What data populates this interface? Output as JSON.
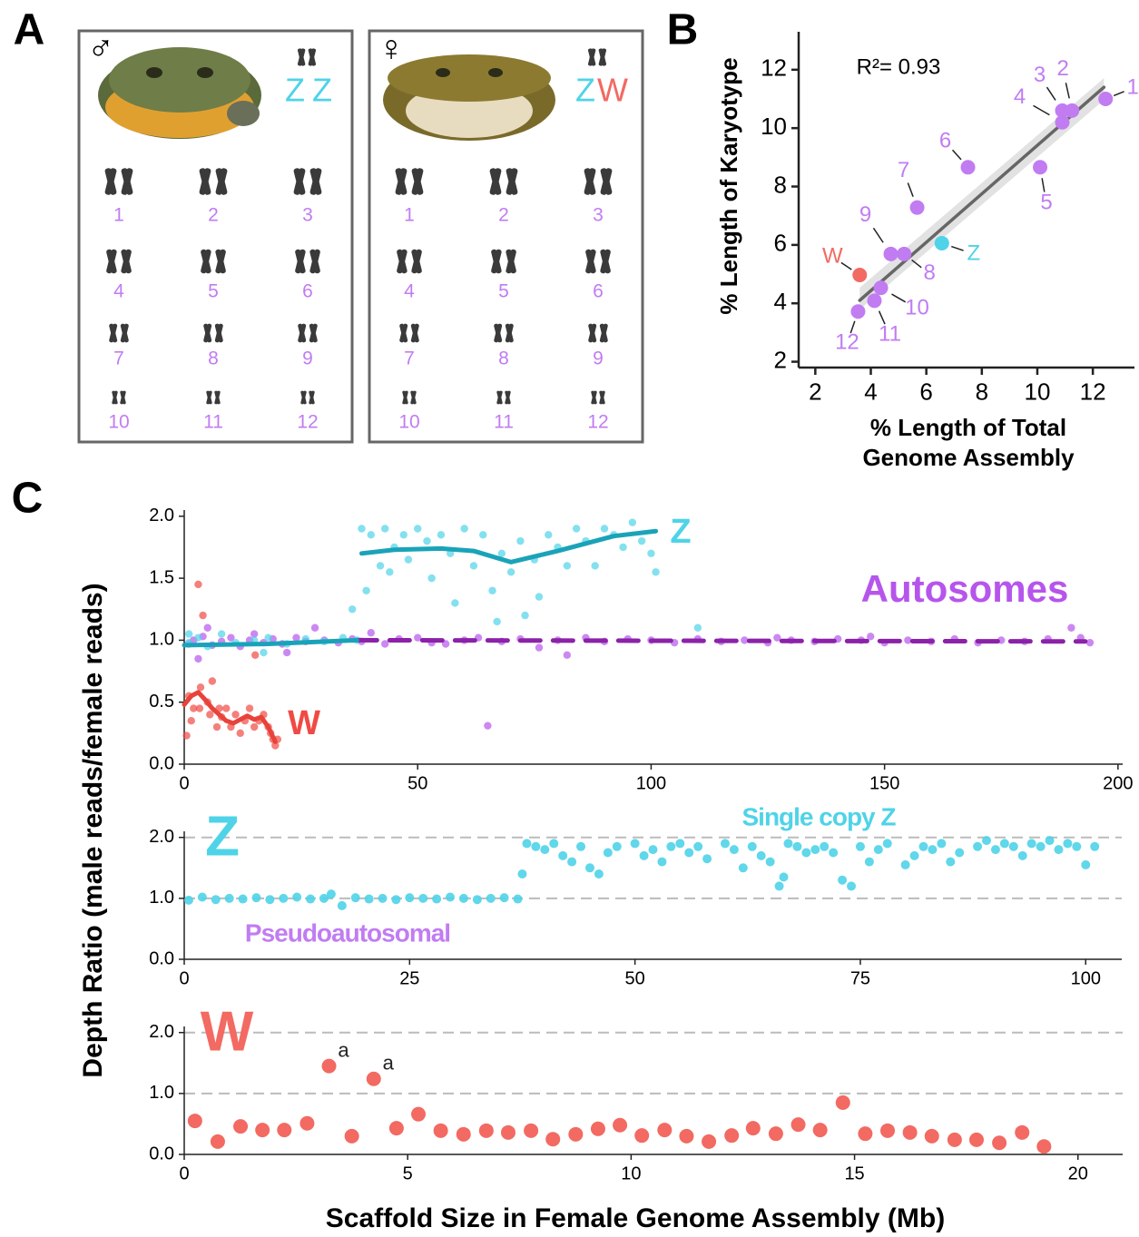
{
  "panel_labels": [
    "A",
    "B",
    "C"
  ],
  "colors": {
    "autosome": "#c17cf2",
    "Z": "#4fd3e8",
    "W": "#f26a62"
  },
  "karyotype": {
    "panels": [
      {
        "symbol": "♂",
        "sex_chromosomes": [
          "Z",
          "Z"
        ]
      },
      {
        "symbol": "♀",
        "sex_chromosomes": [
          "Z",
          "W"
        ]
      }
    ],
    "numbers": [
      "1",
      "2",
      "3",
      "4",
      "5",
      "6",
      "7",
      "8",
      "9",
      "10",
      "11",
      "12"
    ]
  },
  "panel_c": {
    "y_label": "Depth Ratio (male reads/female reads)",
    "x_label": "Scaffold Size in Female Genome Assembly (Mb)"
  },
  "chart_data": [
    {
      "type": "scatter",
      "y_label": "% Length of Karyotype",
      "x_label": [
        "% Length of Total",
        "Genome Assembly"
      ],
      "annotation": "R²= 0.93",
      "xlim": [
        1.4,
        13.5
      ],
      "ylim": [
        1.8,
        13.3
      ],
      "xticks": [
        2,
        4,
        6,
        8,
        10,
        12
      ],
      "yticks": [
        2,
        4,
        6,
        8,
        10,
        12
      ],
      "x": [
        12.46,
        11.25,
        10.9,
        10.9,
        10.1,
        7.5,
        5.67,
        5.2,
        4.72,
        4.36,
        4.13,
        3.54,
        6.56,
        3.6
      ],
      "values": [
        11.0,
        10.6,
        10.6,
        10.2,
        8.66,
        8.66,
        7.28,
        5.69,
        5.69,
        4.53,
        4.09,
        3.72,
        6.06,
        4.97
      ],
      "point_labels": [
        "1",
        "2",
        "3",
        "4",
        "5",
        "6",
        "7",
        "8",
        "9",
        "10",
        "11",
        "12",
        "Z",
        "W"
      ],
      "point_colors": [
        "#c17cf2",
        "#c17cf2",
        "#c17cf2",
        "#c17cf2",
        "#c17cf2",
        "#c17cf2",
        "#c17cf2",
        "#c17cf2",
        "#c17cf2",
        "#c17cf2",
        "#c17cf2",
        "#c17cf2",
        "#4fd3e8",
        "#f26a62"
      ],
      "fit": {
        "color": "#666666",
        "x": [
          3.6,
          12.4
        ],
        "values": [
          4.1,
          11.4
        ]
      }
    },
    {
      "type": "scatter",
      "xlim": [
        0,
        201
      ],
      "ylim": [
        0,
        2.05
      ],
      "xticks": [
        0,
        50,
        100,
        150,
        200
      ],
      "yticks": [
        {
          "value": 0,
          "label": "0.0"
        },
        {
          "value": 0.5,
          "label": "0.5"
        },
        {
          "value": 1,
          "label": "1.0"
        },
        {
          "value": 1.5,
          "label": "1.5"
        },
        {
          "value": 2,
          "label": "2.0"
        }
      ],
      "series": [
        {
          "name": "Autosomes",
          "color": "#b655ec",
          "x": [
            1,
            2,
            3,
            4,
            5,
            6,
            8,
            10,
            12,
            14,
            15,
            17,
            19,
            21,
            22,
            24,
            26,
            28,
            30,
            33,
            36,
            38,
            40,
            43,
            46,
            50,
            53,
            56,
            60,
            63,
            65,
            68,
            72,
            76,
            80,
            82,
            86,
            90,
            95,
            100,
            105,
            110,
            115,
            120,
            125,
            127,
            130,
            135,
            140,
            145,
            147,
            150,
            155,
            160,
            165,
            170,
            175,
            180,
            185,
            190,
            192,
            194
          ],
          "values": [
            0.97,
            1.0,
            0.85,
            1.03,
            1.1,
            0.96,
            0.99,
            1.02,
            0.95,
            1.0,
            1.05,
            0.98,
            1.01,
            0.97,
            0.9,
            1.02,
            0.99,
            1.1,
            1.0,
            0.98,
            1.01,
            0.99,
            1.06,
            0.97,
            1.01,
            1.02,
            0.98,
            0.97,
            1.0,
            1.02,
            0.31,
            0.99,
            1.01,
            0.94,
            1.0,
            0.88,
            1.02,
            0.99,
            1.01,
            1.0,
            0.98,
            1.01,
            0.99,
            1.0,
            0.98,
            1.02,
            1.0,
            0.99,
            1.01,
            1.0,
            1.03,
            0.98,
            1.0,
            0.99,
            1.01,
            0.98,
            1.0,
            0.99,
            1.01,
            1.1,
            1.02,
            0.98
          ],
          "trend": {
            "color": "#8b22a8",
            "dashed": true,
            "x": [
              37,
              193
            ],
            "values": [
              1.0,
              0.99
            ]
          }
        },
        {
          "name": "Z",
          "color": "#4fd3e8",
          "x": [
            1,
            1,
            3,
            5,
            8,
            11,
            15,
            17,
            18,
            22,
            26,
            30,
            34,
            36,
            37,
            38,
            39,
            40,
            42,
            43,
            44,
            45,
            47,
            48,
            50,
            52,
            53,
            55,
            57,
            58,
            60,
            62,
            64,
            66,
            67,
            68,
            70,
            72,
            73,
            75,
            76,
            78,
            80,
            82,
            84,
            86,
            88,
            90,
            92,
            94,
            96,
            98,
            100,
            101,
            110
          ],
          "values": [
            0.98,
            1.05,
            1.02,
            0.95,
            1.05,
            0.98,
            1.0,
            0.9,
            1.02,
            0.97,
            1.01,
            0.99,
            1.02,
            1.25,
            1.0,
            1.9,
            1.4,
            1.85,
            1.6,
            1.9,
            1.55,
            1.75,
            1.85,
            1.65,
            1.9,
            1.8,
            1.5,
            1.85,
            1.7,
            1.3,
            1.9,
            1.6,
            1.85,
            1.4,
            1.15,
            1.7,
            1.55,
            1.8,
            1.2,
            1.65,
            1.35,
            1.85,
            1.75,
            1.6,
            1.9,
            1.8,
            1.6,
            1.9,
            1.85,
            1.75,
            1.95,
            1.8,
            1.7,
            1.55,
            1.1
          ],
          "trend": {
            "color": "#1aa3b8",
            "dashed": false,
            "x": [
              0,
              18,
              37,
              37.5,
              38,
              45,
              55,
              62,
              70,
              80,
              92,
              101
            ],
            "values": [
              0.96,
              0.97,
              1.0,
              null,
              1.7,
              1.73,
              1.74,
              1.72,
              1.63,
              1.72,
              1.84,
              1.88
            ]
          }
        },
        {
          "name": "W",
          "color": "#f04a45",
          "x": [
            0.5,
            1,
            1.5,
            2,
            3,
            3.3,
            3.5,
            4,
            5,
            5.5,
            6,
            7,
            7.5,
            8,
            9,
            10,
            11,
            12,
            13,
            14,
            15,
            15.2,
            16,
            17,
            18,
            18.5,
            19,
            19.5,
            20
          ],
          "values": [
            0.23,
            0.55,
            0.35,
            0.45,
            1.45,
            0.45,
            0.62,
            1.2,
            0.5,
            0.4,
            0.67,
            0.3,
            0.45,
            0.38,
            0.45,
            0.3,
            0.4,
            0.25,
            0.35,
            0.45,
            0.3,
            0.88,
            0.35,
            0.4,
            0.3,
            0.25,
            0.2,
            0.15,
            0.2
          ],
          "trend": {
            "color": "#e8433b",
            "dashed": false,
            "x": [
              0,
              1.5,
              3,
              4.5,
              6,
              7.5,
              9,
              10.5,
              12,
              13.5,
              15,
              16.5,
              18,
              19.5
            ],
            "values": [
              0.48,
              0.55,
              0.58,
              0.52,
              0.45,
              0.4,
              0.35,
              0.33,
              0.36,
              0.39,
              0.36,
              0.38,
              0.3,
              0.18
            ]
          }
        }
      ]
    },
    {
      "type": "scatter",
      "grid": "dashed",
      "xlim": [
        0,
        104
      ],
      "ylim": [
        0,
        2.1
      ],
      "xticks": [
        0,
        25,
        50,
        75,
        100
      ],
      "yticks": [
        {
          "value": 0,
          "label": "0.0"
        },
        {
          "value": 1,
          "label": "1.0"
        },
        {
          "value": 2,
          "label": "2.0"
        }
      ],
      "annotations": [
        {
          "text": "Single copy Z",
          "color": "#4fd3e8"
        },
        {
          "text": "Pseudoautosomal",
          "color": "#c17cf2"
        }
      ],
      "series": [
        {
          "name": "Z",
          "color": "#4fd3e8",
          "x": [
            0.5,
            2,
            3.5,
            5,
            6.5,
            8,
            9.5,
            11,
            12.5,
            14,
            15.5,
            16.3,
            17.5,
            19,
            20.5,
            22,
            23.5,
            25,
            26.5,
            28,
            29.5,
            31,
            32.5,
            34,
            35.5,
            37,
            37.5,
            38,
            39,
            40,
            41,
            42,
            43,
            44,
            45,
            46,
            47,
            48,
            50,
            51,
            52,
            53,
            54,
            55,
            56,
            57,
            58,
            60,
            61,
            62,
            63,
            64,
            65,
            66,
            66.5,
            67,
            68,
            69,
            70,
            71,
            72,
            73,
            74,
            75,
            76,
            77,
            78,
            80,
            81,
            82,
            83,
            84,
            85,
            86,
            88,
            89,
            90,
            91,
            92,
            93,
            94,
            95,
            96,
            97,
            98,
            99,
            100,
            101
          ],
          "values": [
            0.97,
            1.02,
            0.98,
            1.0,
            0.99,
            1.01,
            0.98,
            1.0,
            1.02,
            0.99,
            1.0,
            1.07,
            0.88,
            1.01,
            0.99,
            1.0,
            0.98,
            1.01,
            1.0,
            0.99,
            1.02,
            1.0,
            0.98,
            1.0,
            1.01,
            0.99,
            1.4,
            1.9,
            1.85,
            1.8,
            1.9,
            1.7,
            1.6,
            1.85,
            1.5,
            1.4,
            1.75,
            1.85,
            1.9,
            1.7,
            1.8,
            1.6,
            1.85,
            1.9,
            1.75,
            1.85,
            1.65,
            1.9,
            1.8,
            1.5,
            1.85,
            1.7,
            1.6,
            1.2,
            1.35,
            1.9,
            1.85,
            1.75,
            1.8,
            1.85,
            1.75,
            1.3,
            1.2,
            1.85,
            1.6,
            1.8,
            1.9,
            1.55,
            1.7,
            1.85,
            1.8,
            1.9,
            1.6,
            1.75,
            1.85,
            1.95,
            1.8,
            1.9,
            1.85,
            1.7,
            1.9,
            1.85,
            1.95,
            1.8,
            1.9,
            1.85,
            1.55,
            1.85
          ]
        }
      ]
    },
    {
      "type": "scatter",
      "grid": "dashed",
      "xlim": [
        0,
        21
      ],
      "ylim": [
        0,
        2.1
      ],
      "xticks": [
        0,
        5,
        10,
        15,
        20
      ],
      "yticks": [
        {
          "value": 0,
          "label": "0.0"
        },
        {
          "value": 1,
          "label": "1.0"
        },
        {
          "value": 2,
          "label": "2.0"
        }
      ],
      "series": [
        {
          "name": "W",
          "color": "#f26a62",
          "x": [
            0.24,
            0.75,
            1.26,
            1.75,
            2.24,
            2.75,
            3.24,
            3.75,
            4.24,
            4.75,
            5.24,
            5.74,
            6.25,
            6.76,
            7.25,
            7.76,
            8.25,
            8.76,
            9.26,
            9.75,
            10.24,
            10.75,
            11.24,
            11.74,
            12.25,
            12.73,
            13.24,
            13.74,
            14.23,
            14.74,
            15.24,
            15.74,
            16.24,
            16.73,
            17.24,
            17.73,
            18.24,
            18.75,
            19.24
          ],
          "values": [
            0.55,
            0.21,
            0.46,
            0.4,
            0.4,
            0.51,
            1.45,
            0.3,
            1.24,
            0.43,
            0.66,
            0.39,
            0.33,
            0.39,
            0.36,
            0.39,
            0.25,
            0.33,
            0.42,
            0.48,
            0.31,
            0.4,
            0.3,
            0.21,
            0.31,
            0.43,
            0.34,
            0.49,
            0.4,
            0.85,
            0.34,
            0.39,
            0.36,
            0.3,
            0.24,
            0.24,
            0.19,
            0.36,
            0.13
          ],
          "point_labels": [
            null,
            null,
            null,
            null,
            null,
            null,
            "a",
            null,
            "a",
            null,
            null,
            null,
            null,
            null,
            null,
            null,
            null,
            null,
            null,
            null,
            null,
            null,
            null,
            null,
            null,
            null,
            null,
            null,
            null,
            null,
            null,
            null,
            null,
            null,
            null,
            null,
            null,
            null,
            null
          ]
        }
      ]
    }
  ]
}
